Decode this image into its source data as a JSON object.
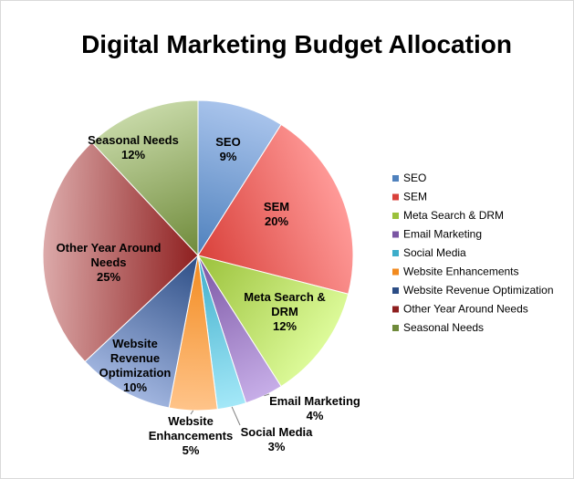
{
  "chart_data": {
    "type": "pie",
    "title": "Digital Marketing Budget Allocation",
    "legend_position": "right",
    "slices": [
      {
        "label": "SEO",
        "label_lines": [
          "SEO"
        ],
        "value": 9,
        "value_label": "9%",
        "color": "#4f81bd",
        "light": "#a9c4ec"
      },
      {
        "label": "SEM",
        "label_lines": [
          "SEM"
        ],
        "value": 20,
        "value_label": "20%",
        "color": "#d9413b",
        "light": "#ff9a98"
      },
      {
        "label": "Meta Search & DRM",
        "label_lines": [
          "Meta Search &",
          "DRM"
        ],
        "value": 12,
        "value_label": "12%",
        "color": "#9bc13b",
        "light": "#ddfb9a"
      },
      {
        "label": "Email Marketing",
        "label_lines": [
          "Email Marketing"
        ],
        "value": 4,
        "value_label": "4%",
        "color": "#7a55a3",
        "light": "#c7aee8"
      },
      {
        "label": "Social Media",
        "label_lines": [
          "Social Media"
        ],
        "value": 3,
        "value_label": "3%",
        "color": "#3dadca",
        "light": "#a4e8f8"
      },
      {
        "label": "Website Enhancements",
        "label_lines": [
          "Website",
          "Enhancements"
        ],
        "value": 5,
        "value_label": "5%",
        "color": "#f28a1e",
        "light": "#ffc48a"
      },
      {
        "label": "Website Revenue Optimization",
        "label_lines": [
          "Website",
          "Revenue",
          "Optimization"
        ],
        "value": 10,
        "value_label": "10%",
        "color": "#2c4d85",
        "light": "#a2b6e0"
      },
      {
        "label": "Other Year Around Needs",
        "label_lines": [
          "Other Year Around",
          "Needs"
        ],
        "value": 25,
        "value_label": "25%",
        "color": "#8e1f1f",
        "light": "#dcaaaa"
      },
      {
        "label": "Seasonal Needs",
        "label_lines": [
          "Seasonal Needs"
        ],
        "value": 12,
        "value_label": "12%",
        "color": "#6f8a3a",
        "light": "#c6d8a6"
      }
    ]
  }
}
